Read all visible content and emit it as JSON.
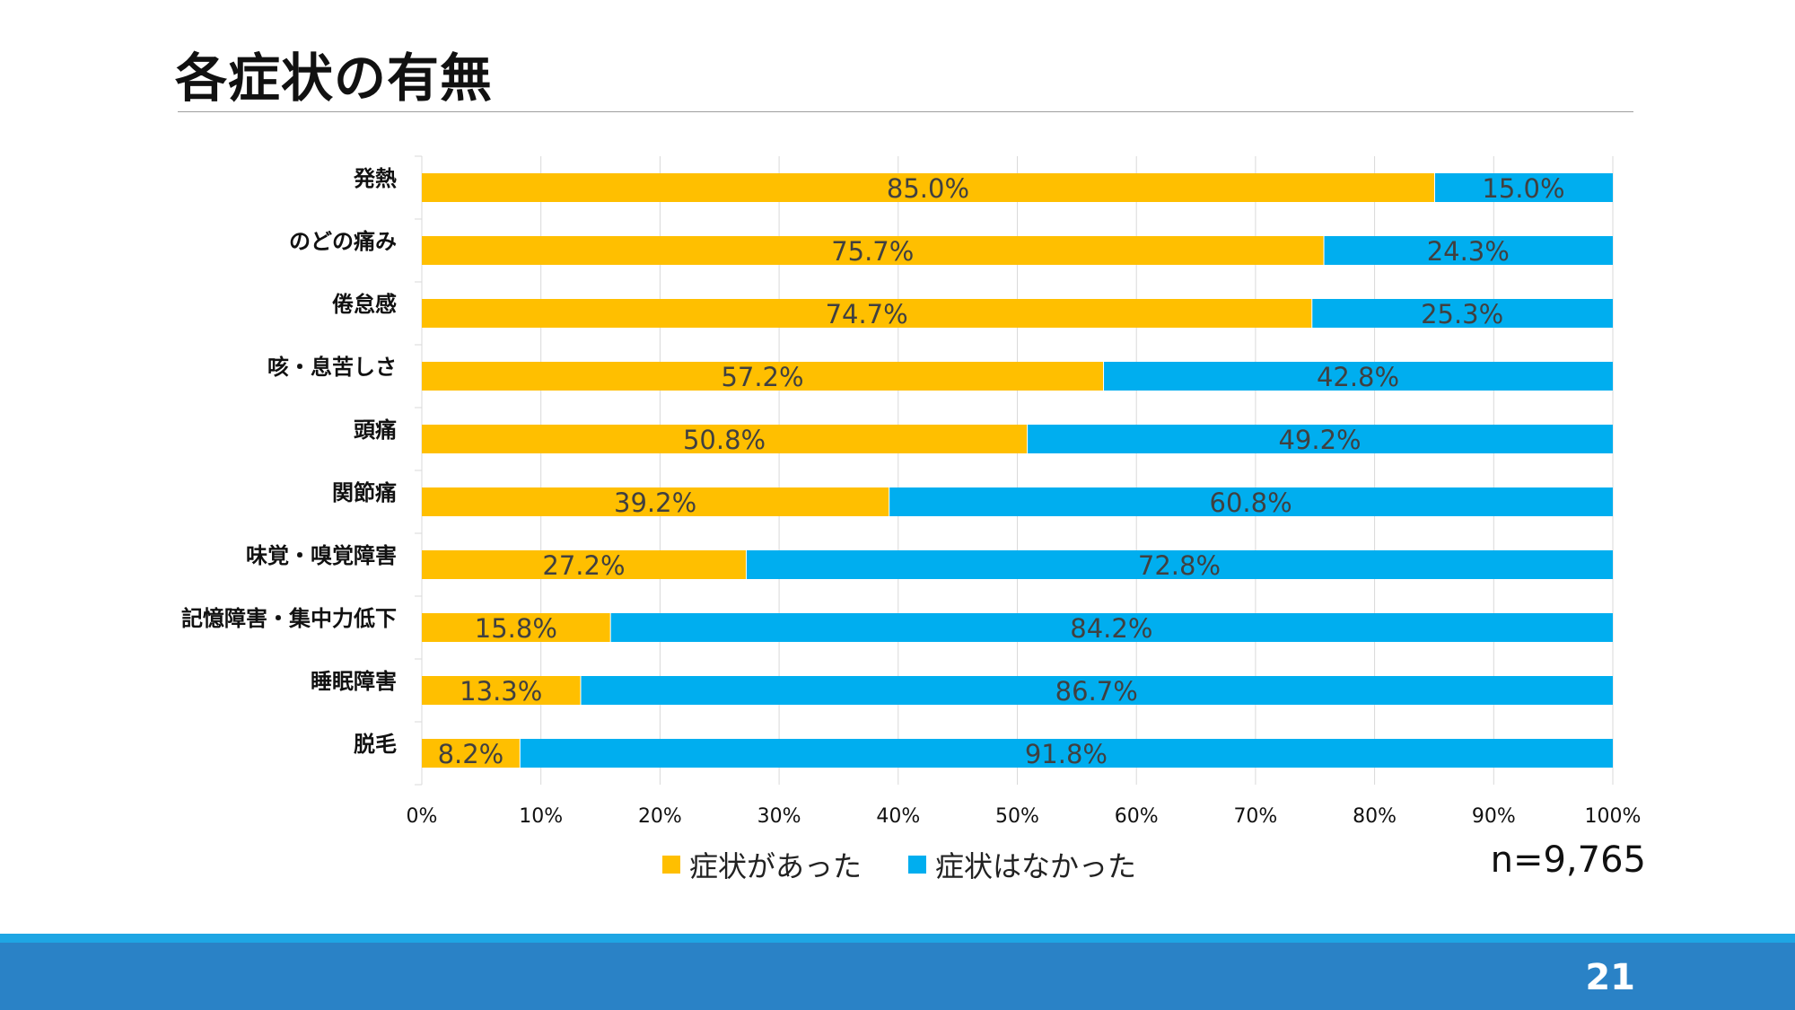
{
  "slide": {
    "title": "各症状の有無",
    "sample_size": "n=9,765",
    "page_number": "21"
  },
  "colors": {
    "yes": "#FFBF00",
    "no": "#00AEEF",
    "footer": "#2A82C6",
    "footer_accent": "#1EA6E4"
  },
  "chart_data": {
    "type": "bar",
    "orientation": "horizontal",
    "stacked": "100%",
    "categories": [
      "発熱",
      "のどの痛み",
      "倦怠感",
      "咳・息苦しさ",
      "頭痛",
      "関節痛",
      "味覚・嗅覚障害",
      "記憶障害・集中力低下",
      "睡眠障害",
      "脱毛"
    ],
    "series": [
      {
        "name": "症状があった",
        "values": [
          85.0,
          75.7,
          74.7,
          57.2,
          50.8,
          39.2,
          27.2,
          15.8,
          13.3,
          8.2
        ],
        "color": "#FFBF00"
      },
      {
        "name": "症状はなかった",
        "values": [
          15.0,
          24.3,
          25.3,
          42.8,
          49.2,
          60.8,
          72.8,
          84.2,
          86.7,
          91.8
        ],
        "color": "#00AEEF"
      }
    ],
    "data_labels": {
      "yes": [
        "85.0%",
        "75.7%",
        "74.7%",
        "57.2%",
        "50.8%",
        "39.2%",
        "27.2%",
        "15.8%",
        "13.3%",
        "8.2%"
      ],
      "no": [
        "15.0%",
        "24.3%",
        "25.3%",
        "42.8%",
        "49.2%",
        "60.8%",
        "72.8%",
        "84.2%",
        "86.7%",
        "91.8%"
      ]
    },
    "x_ticks": [
      "0%",
      "10%",
      "20%",
      "30%",
      "40%",
      "50%",
      "60%",
      "70%",
      "80%",
      "90%",
      "100%"
    ],
    "xlim": [
      0,
      100
    ],
    "grid": true,
    "legend_position": "bottom"
  }
}
